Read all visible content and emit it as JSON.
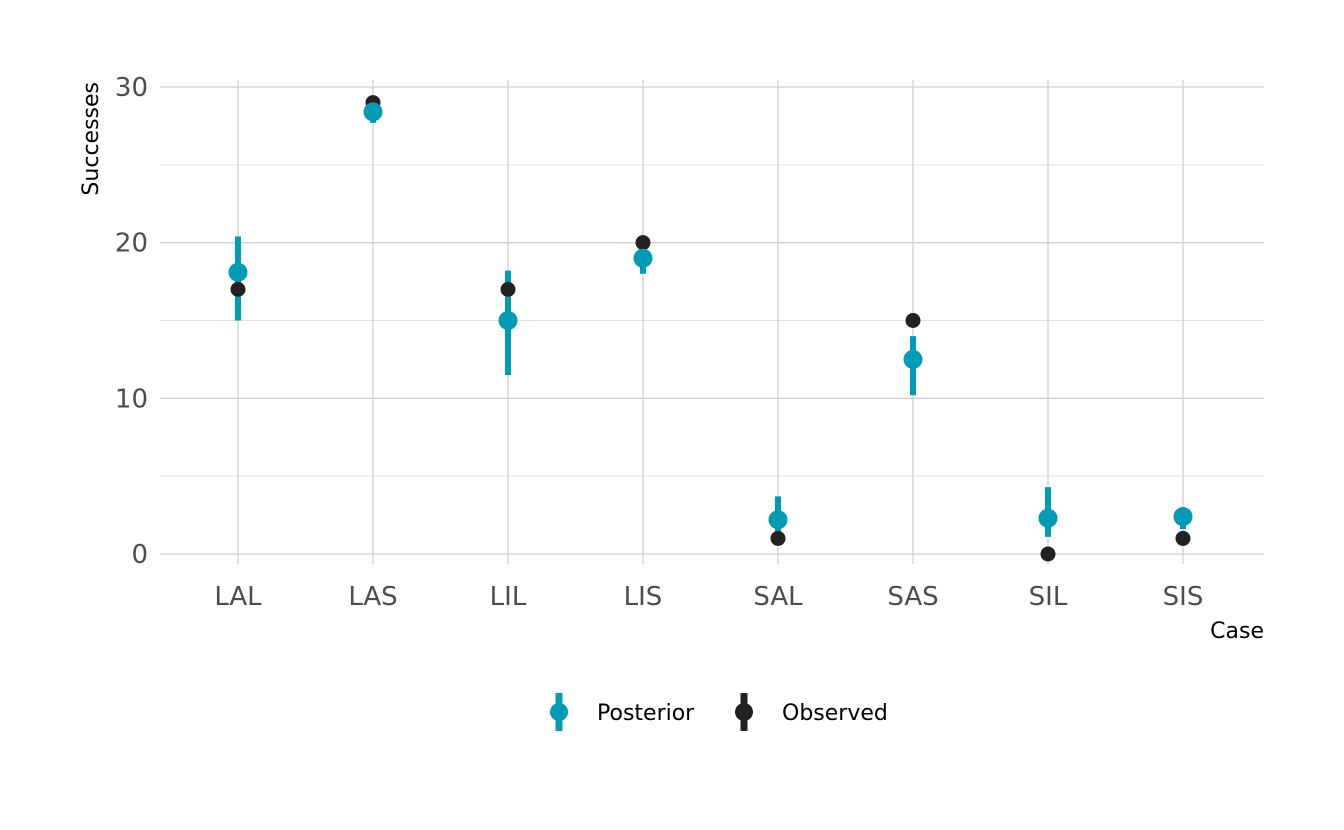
{
  "chart_data": {
    "type": "scatter",
    "xlabel": "Case",
    "ylabel": "Successes",
    "categories": [
      "LAL",
      "LAS",
      "LIL",
      "LIS",
      "SAL",
      "SAS",
      "SIL",
      "SIS"
    ],
    "ylim": [
      -1.5,
      30.5
    ],
    "yticks": [
      0,
      10,
      20,
      30
    ],
    "grid": true,
    "legend_position": "bottom",
    "series": [
      {
        "name": "Posterior",
        "color": "#009cb5",
        "values": [
          18.1,
          28.4,
          15.0,
          19.0,
          2.2,
          12.5,
          2.3,
          2.4
        ],
        "lower": [
          15.0,
          27.7,
          11.5,
          18.0,
          0.6,
          10.2,
          1.1,
          1.6
        ],
        "upper": [
          20.4,
          29.0,
          18.2,
          19.9,
          3.7,
          14.0,
          4.3,
          3.0
        ]
      },
      {
        "name": "Observed",
        "color": "#222222",
        "values": [
          17,
          29,
          17,
          20,
          1,
          15,
          0,
          1
        ]
      }
    ]
  }
}
